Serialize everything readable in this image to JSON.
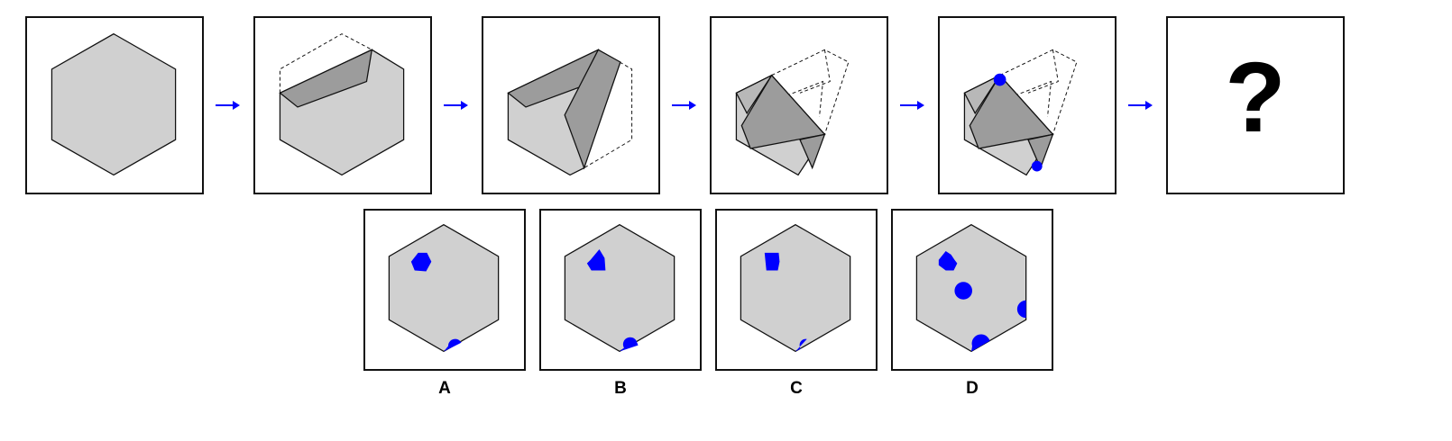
{
  "question": {
    "placeholder": "?"
  },
  "options": [
    {
      "label": "A"
    },
    {
      "label": "B"
    },
    {
      "label": "C"
    },
    {
      "label": "D"
    }
  ],
  "colors": {
    "face": "#d0d0d0",
    "fold": "#9c9c9c",
    "mark": "#0000ff",
    "arrow": "#0000ff",
    "outline": "#111111"
  }
}
